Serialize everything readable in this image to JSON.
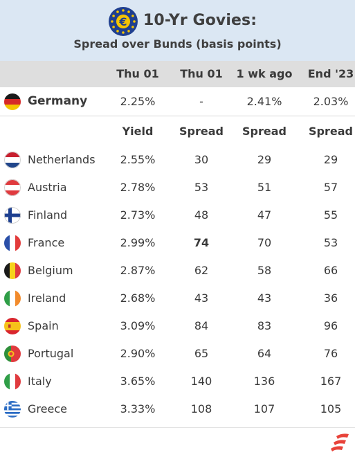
{
  "header": {
    "title": "10-Yr Govies:",
    "subtitle": "Spread over Bunds (basis points)",
    "logo_icon": "euro-stars-icon"
  },
  "columns": [
    "Thu 01",
    "Thu 01",
    "1 wk ago",
    "End '23"
  ],
  "benchmark": {
    "country": "Germany",
    "flag_icon": "germany-flag-icon",
    "values": [
      "2.25%",
      "-",
      "2.41%",
      "2.03%"
    ]
  },
  "subheaders": [
    "Yield",
    "Spread",
    "Spread",
    "Spread"
  ],
  "chart_data": {
    "type": "table",
    "title": "10-Yr Govies:",
    "subtitle": "Spread over Bunds (basis points)",
    "header_row": [
      "Thu 01",
      "Thu 01",
      "1 wk ago",
      "End '23"
    ],
    "sub_header_row": [
      "Yield",
      "Spread",
      "Spread",
      "Spread"
    ],
    "benchmark_row": {
      "country": "Germany",
      "yield": "2.25%",
      "spread_thu": "-",
      "yield_1wk_ago": "2.41%",
      "yield_end23": "2.03%"
    },
    "rows": [
      {
        "country": "Netherlands",
        "yield": "2.55%",
        "spread": "30",
        "spread_1wk": "29",
        "spread_end23": "29"
      },
      {
        "country": "Austria",
        "yield": "2.78%",
        "spread": "53",
        "spread_1wk": "51",
        "spread_end23": "57"
      },
      {
        "country": "Finland",
        "yield": "2.73%",
        "spread": "48",
        "spread_1wk": "47",
        "spread_end23": "55"
      },
      {
        "country": "France",
        "yield": "2.99%",
        "spread": "74",
        "spread_1wk": "70",
        "spread_end23": "53",
        "highlight": true
      },
      {
        "country": "Belgium",
        "yield": "2.87%",
        "spread": "62",
        "spread_1wk": "58",
        "spread_end23": "66"
      },
      {
        "country": "Ireland",
        "yield": "2.68%",
        "spread": "43",
        "spread_1wk": "43",
        "spread_end23": "36"
      },
      {
        "country": "Spain",
        "yield": "3.09%",
        "spread": "84",
        "spread_1wk": "83",
        "spread_end23": "96"
      },
      {
        "country": "Portugal",
        "yield": "2.90%",
        "spread": "65",
        "spread_1wk": "64",
        "spread_end23": "76"
      },
      {
        "country": "Italy",
        "yield": "3.65%",
        "spread": "140",
        "spread_1wk": "136",
        "spread_end23": "167"
      },
      {
        "country": "Greece",
        "yield": "3.33%",
        "spread": "108",
        "spread_1wk": "107",
        "spread_end23": "105"
      }
    ]
  },
  "colors": {
    "header_bg": "#dbe7f3",
    "column_header_bg": "#dedede",
    "brand_red": "#e8433a",
    "euro_blue": "#1f3f8f",
    "euro_gold": "#f5c400"
  },
  "footer": {
    "logo_icon": "brand-logo-icon"
  }
}
